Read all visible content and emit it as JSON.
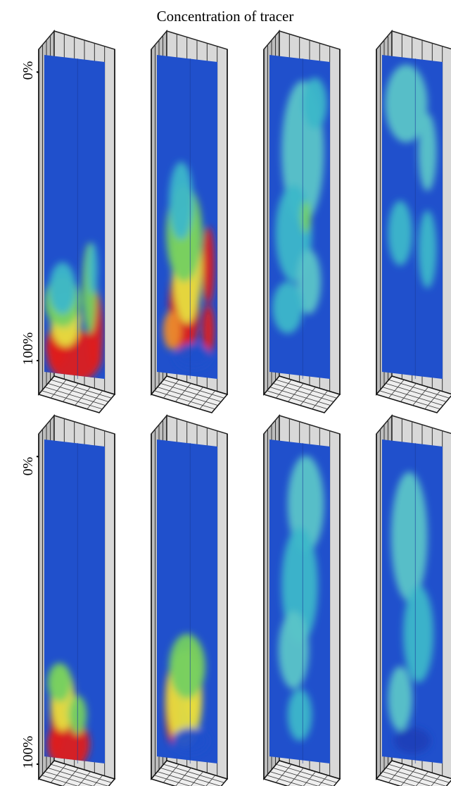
{
  "title": "Concentration of tracer",
  "rows": [
    {
      "top_label": "0%",
      "bottom_label": "100%"
    },
    {
      "top_label": "0%",
      "bottom_label": "100%"
    }
  ]
}
